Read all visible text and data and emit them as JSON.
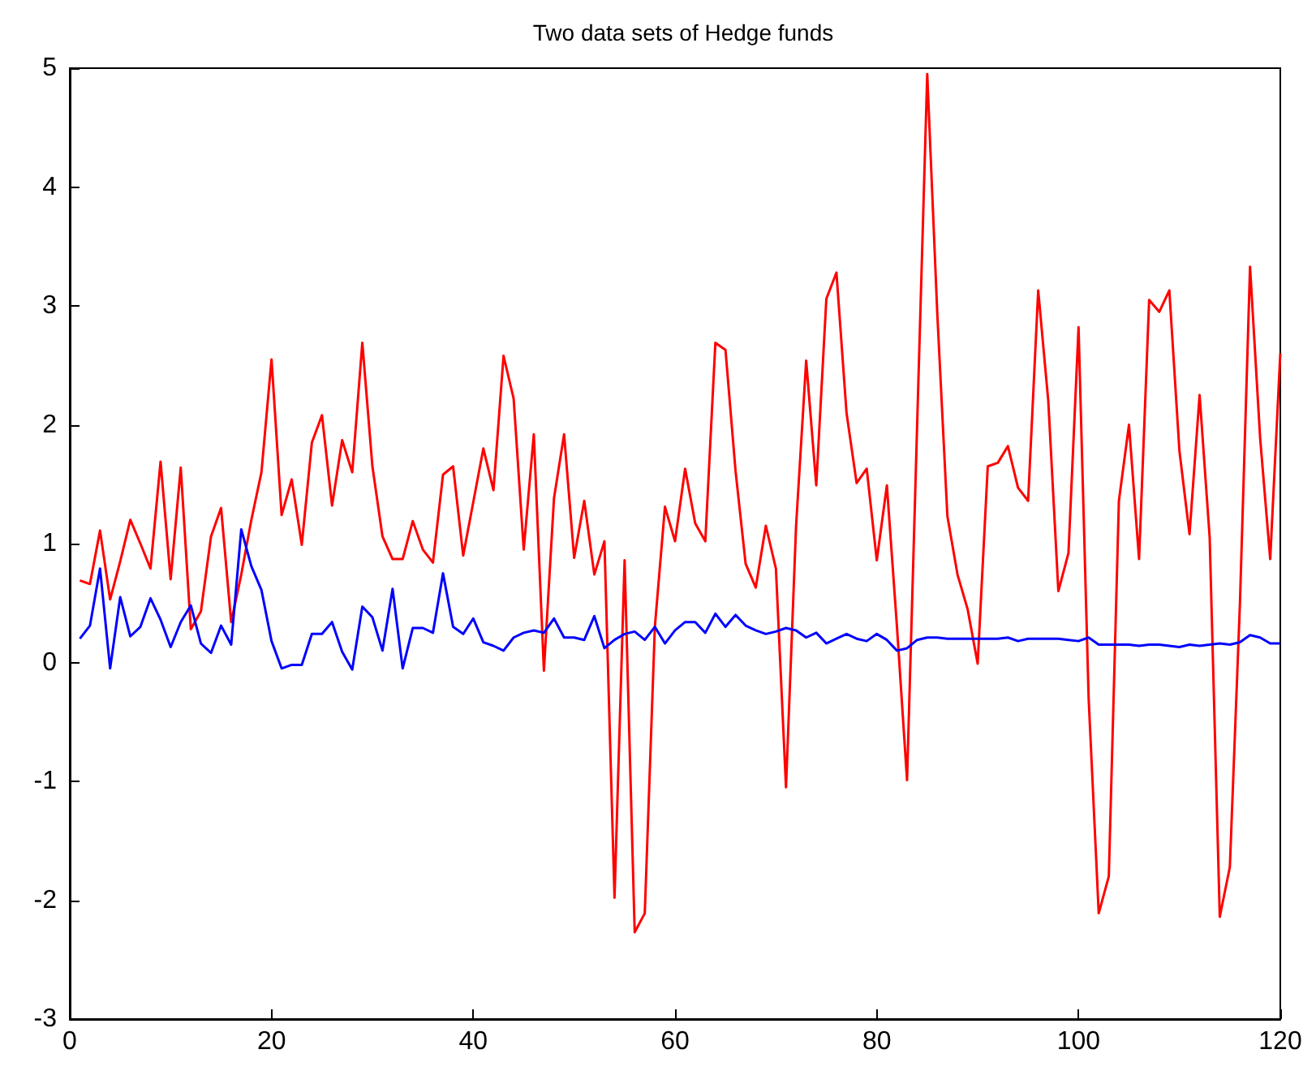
{
  "chart_data": {
    "type": "line",
    "title": "Two data sets of Hedge funds",
    "x": [
      1,
      2,
      3,
      4,
      5,
      6,
      7,
      8,
      9,
      10,
      11,
      12,
      13,
      14,
      15,
      16,
      17,
      18,
      19,
      20,
      21,
      22,
      23,
      24,
      25,
      26,
      27,
      28,
      29,
      30,
      31,
      32,
      33,
      34,
      35,
      36,
      37,
      38,
      39,
      40,
      41,
      42,
      43,
      44,
      45,
      46,
      47,
      48,
      49,
      50,
      51,
      52,
      53,
      54,
      55,
      56,
      57,
      58,
      59,
      60,
      61,
      62,
      63,
      64,
      65,
      66,
      67,
      68,
      69,
      70,
      71,
      72,
      73,
      74,
      75,
      76,
      77,
      78,
      79,
      80,
      81,
      82,
      83,
      84,
      85,
      86,
      87,
      88,
      89,
      90,
      91,
      92,
      93,
      94,
      95,
      96,
      97,
      98,
      99,
      100,
      101,
      102,
      103,
      104,
      105,
      106,
      107,
      108,
      109,
      110,
      111,
      112,
      113,
      114,
      115,
      116,
      117,
      118,
      119,
      120
    ],
    "series": [
      {
        "color": "#ff0000",
        "values": [
          0.69,
          0.66,
          1.11,
          0.53,
          0.85,
          1.2,
          1.0,
          0.79,
          1.69,
          0.7,
          1.64,
          0.28,
          0.43,
          1.06,
          1.3,
          0.34,
          0.74,
          1.2,
          1.6,
          2.55,
          1.24,
          1.54,
          0.99,
          1.85,
          2.08,
          1.32,
          1.87,
          1.6,
          2.69,
          1.65,
          1.06,
          0.87,
          0.87,
          1.19,
          0.95,
          0.84,
          1.58,
          1.65,
          0.9,
          1.35,
          1.8,
          1.45,
          2.58,
          2.22,
          0.95,
          1.92,
          -0.07,
          1.38,
          1.92,
          0.88,
          1.36,
          0.74,
          1.02,
          -1.98,
          0.86,
          -2.27,
          -2.11,
          0.3,
          1.31,
          1.02,
          1.63,
          1.17,
          1.02,
          2.69,
          2.63,
          1.61,
          0.83,
          0.63,
          1.15,
          0.79,
          -1.05,
          1.15,
          2.54,
          1.49,
          3.06,
          3.28,
          2.1,
          1.51,
          1.63,
          0.86,
          1.49,
          0.3,
          -0.99,
          2.0,
          4.95,
          2.93,
          1.23,
          0.74,
          0.45,
          -0.01,
          1.65,
          1.68,
          1.82,
          1.47,
          1.36,
          3.13,
          2.2,
          0.6,
          0.92,
          2.82,
          -0.3,
          -2.11,
          -1.8,
          1.36,
          2.0,
          0.87,
          3.05,
          2.95,
          3.13,
          1.78,
          1.08,
          2.25,
          1.05,
          -2.14,
          -1.72,
          0.5,
          3.33,
          1.89,
          0.87,
          2.6
        ]
      },
      {
        "color": "#0000ff",
        "values": [
          0.2,
          0.31,
          0.79,
          -0.05,
          0.55,
          0.22,
          0.3,
          0.54,
          0.36,
          0.13,
          0.34,
          0.48,
          0.16,
          0.08,
          0.31,
          0.15,
          1.12,
          0.81,
          0.61,
          0.18,
          -0.05,
          -0.02,
          -0.02,
          0.24,
          0.24,
          0.34,
          0.09,
          -0.06,
          0.47,
          0.38,
          0.1,
          0.62,
          -0.05,
          0.29,
          0.29,
          0.25,
          0.75,
          0.3,
          0.24,
          0.37,
          0.17,
          0.14,
          0.1,
          0.21,
          0.25,
          0.27,
          0.25,
          0.37,
          0.21,
          0.21,
          0.19,
          0.39,
          0.12,
          0.19,
          0.24,
          0.26,
          0.19,
          0.3,
          0.16,
          0.27,
          0.34,
          0.34,
          0.25,
          0.41,
          0.3,
          0.4,
          0.31,
          0.27,
          0.24,
          0.26,
          0.29,
          0.27,
          0.21,
          0.25,
          0.16,
          0.2,
          0.24,
          0.2,
          0.18,
          0.24,
          0.19,
          0.1,
          0.12,
          0.19,
          0.21,
          0.21,
          0.2,
          0.2,
          0.2,
          0.2,
          0.2,
          0.2,
          0.21,
          0.18,
          0.2,
          0.2,
          0.2,
          0.2,
          0.19,
          0.18,
          0.21,
          0.15,
          0.15,
          0.15,
          0.15,
          0.14,
          0.15,
          0.15,
          0.14,
          0.13,
          0.15,
          0.14,
          0.15,
          0.16,
          0.15,
          0.17,
          0.23,
          0.21,
          0.16,
          0.16
        ]
      }
    ],
    "xlim": [
      0,
      120
    ],
    "xticks": [
      0,
      20,
      40,
      60,
      80,
      100,
      120
    ],
    "ylim": [
      -3,
      5
    ],
    "yticks": [
      -3,
      -2,
      -1,
      0,
      1,
      2,
      3,
      4,
      5
    ],
    "grid": false,
    "marker": "none",
    "line_style": "solid"
  }
}
